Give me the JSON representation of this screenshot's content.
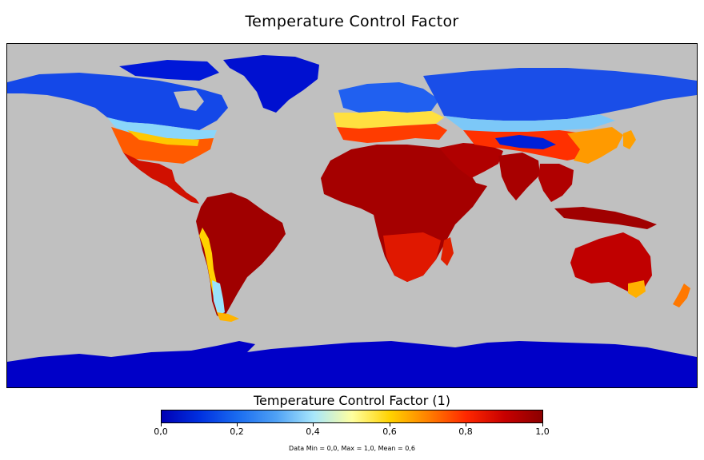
{
  "title": "Temperature Control Factor",
  "colorbar": {
    "title": "Temperature Control Factor (1)",
    "ticks": [
      "0,0",
      "0,2",
      "0,4",
      "0,6",
      "0,8",
      "1,0"
    ],
    "min": 0.0,
    "max": 1.0,
    "colors": [
      "#0000b4",
      "#1a6cf0",
      "#a8e6fb",
      "#ffffa0",
      "#ff8000",
      "#c80000",
      "#8b0000"
    ]
  },
  "stats": "Data Min = 0,0, Max = 1,0, Mean = 0,6",
  "map": {
    "projection": "equirectangular",
    "background_color": "#c0c0c0",
    "regions": [
      {
        "name": "antarctica",
        "level": 0.0
      },
      {
        "name": "greenland",
        "level": 0.05
      },
      {
        "name": "northern-canada-alaska",
        "level": 0.15
      },
      {
        "name": "southern-canada-usa",
        "level": 0.55
      },
      {
        "name": "mexico-central-america",
        "level": 0.9
      },
      {
        "name": "south-america",
        "level": 0.95
      },
      {
        "name": "andes",
        "level": 0.5
      },
      {
        "name": "patagonia",
        "level": 0.6
      },
      {
        "name": "africa",
        "level": 0.95
      },
      {
        "name": "europe",
        "level": 0.6
      },
      {
        "name": "siberia",
        "level": 0.15
      },
      {
        "name": "central-asia",
        "level": 0.8
      },
      {
        "name": "tibet",
        "level": 0.05
      },
      {
        "name": "middle-east-india",
        "level": 0.95
      },
      {
        "name": "southeast-asia",
        "level": 0.95
      },
      {
        "name": "australia",
        "level": 0.9
      },
      {
        "name": "new-zealand",
        "level": 0.7
      }
    ]
  }
}
